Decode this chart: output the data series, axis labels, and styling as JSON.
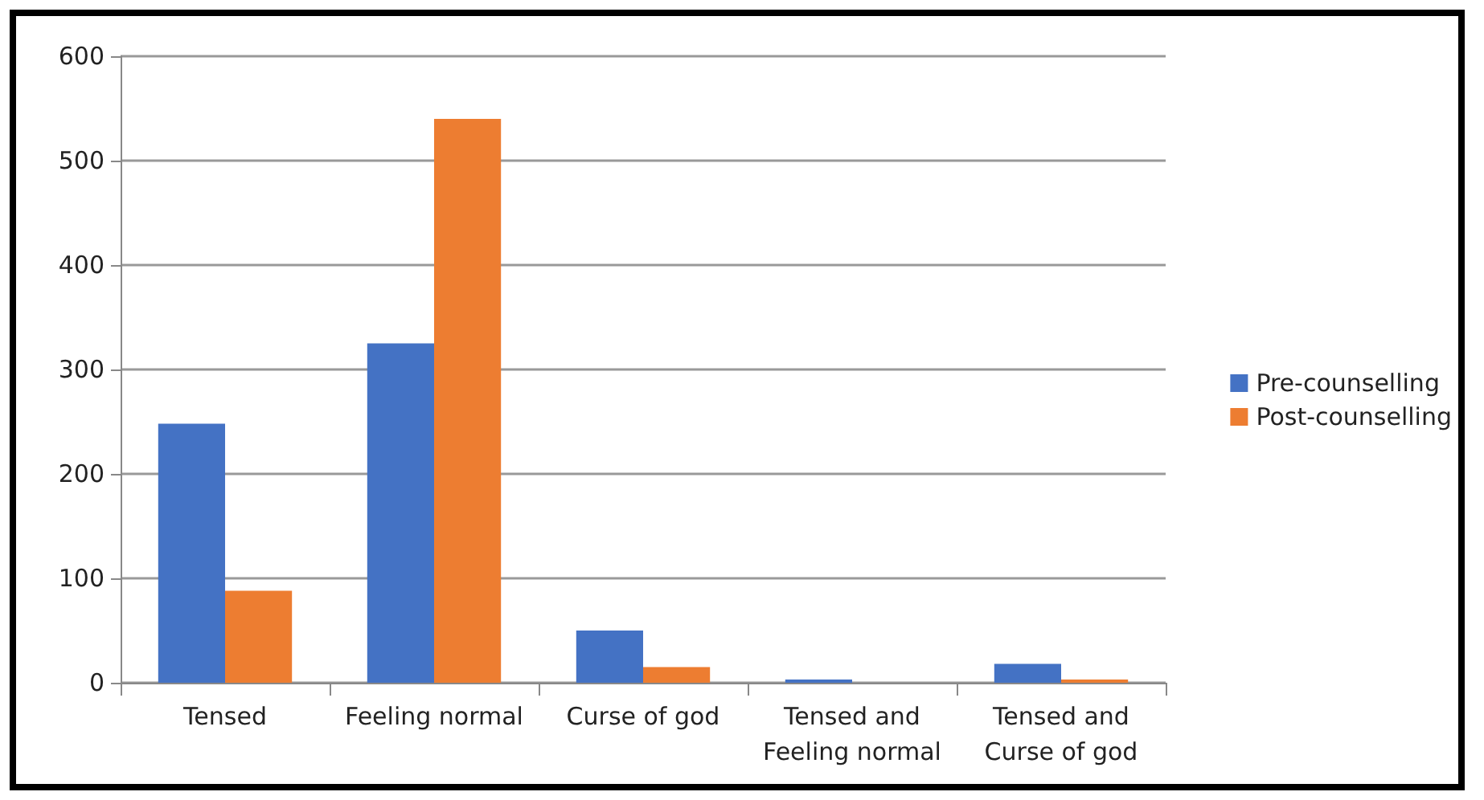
{
  "chart_data": {
    "type": "bar",
    "categories": [
      "Tensed",
      "Feeling normal",
      "Curse of god",
      "Tensed and\nFeeling normal",
      "Tensed and\nCurse of god"
    ],
    "series": [
      {
        "name": "Pre-counselling",
        "color": "#4472c4",
        "values": [
          248,
          325,
          50,
          3,
          18
        ]
      },
      {
        "name": "Post-counselling",
        "color": "#ed7d31",
        "values": [
          88,
          540,
          15,
          0,
          3
        ]
      }
    ],
    "ylim": [
      0,
      600
    ],
    "yticks": [
      0,
      100,
      200,
      300,
      400,
      500,
      600
    ],
    "grid": "y",
    "legend": "right"
  }
}
